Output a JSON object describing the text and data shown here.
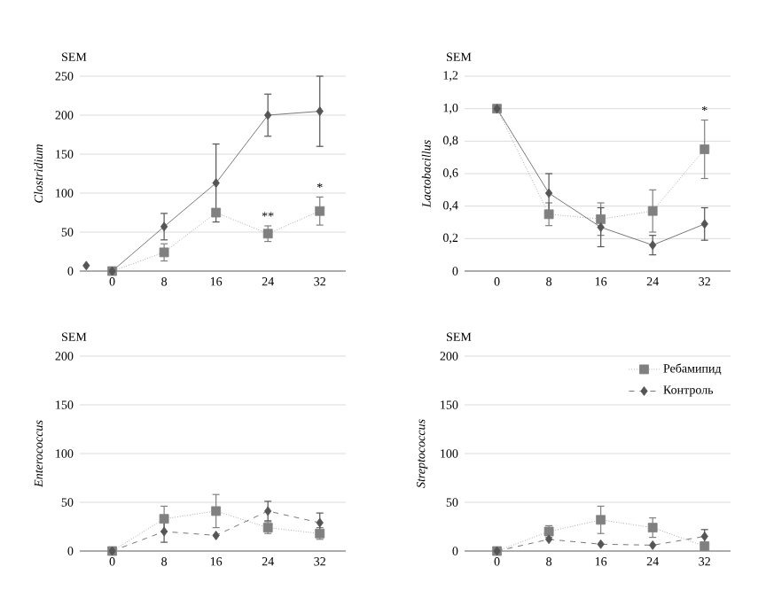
{
  "chart_data": [
    {
      "type": "line",
      "ylabel": "Clostridium",
      "x": [
        0,
        8,
        16,
        24,
        32
      ],
      "xlim": [
        -5,
        36
      ],
      "xticks": [
        0,
        8,
        16,
        24,
        32
      ],
      "ylim": [
        0,
        250
      ],
      "yticks": [
        0,
        50,
        100,
        150,
        200,
        250
      ],
      "grid": "y",
      "annotations": [
        "SEM"
      ],
      "series": [
        {
          "color": "#808080",
          "marker": "square",
          "line_style": "dotted",
          "values": [
            0,
            24,
            75,
            48,
            77
          ],
          "errors": [
            null,
            11,
            null,
            10,
            18
          ],
          "value_labels": [
            null,
            null,
            null,
            "**",
            "*"
          ]
        },
        {
          "color": "#555555",
          "marker": "diamond",
          "line_style": "solid",
          "values": [
            0,
            57,
            113,
            200,
            205
          ],
          "errors": [
            null,
            17,
            50,
            27,
            45
          ]
        },
        {
          "type": "scatter",
          "color": "#555555",
          "marker": "diamond",
          "x": [
            -4
          ],
          "values": [
            7
          ]
        }
      ]
    },
    {
      "type": "line",
      "ylabel": "Lactobacillus",
      "x": [
        0,
        8,
        16,
        24,
        32
      ],
      "xlim": [
        -5,
        36
      ],
      "xticks": [
        0,
        8,
        16,
        24,
        32
      ],
      "ylim": [
        0,
        1.2
      ],
      "yticks": [
        0,
        {
          "value": 0.2,
          "label": "0,2"
        },
        {
          "value": 0.4,
          "label": "0,4"
        },
        {
          "value": 0.6,
          "label": "0,6"
        },
        {
          "value": 0.8,
          "label": "0,8"
        },
        {
          "value": 1.0,
          "label": "1,0"
        },
        {
          "value": 1.2,
          "label": "1,2"
        }
      ],
      "grid": "y",
      "annotations": [
        "SEM"
      ],
      "series": [
        {
          "color": "#808080",
          "marker": "square",
          "line_style": "dotted",
          "values": [
            1.0,
            0.35,
            0.32,
            0.37,
            0.75
          ],
          "errors": [
            null,
            0.07,
            0.1,
            0.13,
            0.18
          ],
          "value_labels": [
            null,
            null,
            null,
            null,
            "*"
          ]
        },
        {
          "color": "#555555",
          "marker": "diamond",
          "line_style": "solid",
          "values": [
            1.0,
            0.48,
            0.27,
            0.16,
            0.29
          ],
          "errors": [
            null,
            0.12,
            0.12,
            0.06,
            0.1
          ]
        }
      ]
    },
    {
      "type": "line",
      "ylabel": "Enterococcus",
      "x": [
        0,
        8,
        16,
        24,
        32
      ],
      "xlim": [
        -5,
        36
      ],
      "xticks": [
        0,
        8,
        16,
        24,
        32
      ],
      "ylim": [
        0,
        200
      ],
      "yticks": [
        0,
        50,
        100,
        150,
        200
      ],
      "grid": "y",
      "annotations": [
        "SEM"
      ],
      "series": [
        {
          "color": "#808080",
          "marker": "square",
          "line_style": "dotted",
          "values": [
            0,
            33,
            41,
            24,
            18
          ],
          "errors": [
            null,
            13,
            17,
            6,
            6
          ]
        },
        {
          "color": "#555555",
          "marker": "diamond",
          "line_style": "dashed",
          "values": [
            0,
            20,
            16,
            41,
            29
          ],
          "errors": [
            null,
            11,
            null,
            10,
            10
          ]
        }
      ]
    },
    {
      "type": "line",
      "ylabel": "Streptococcus",
      "x": [
        0,
        8,
        16,
        24,
        32
      ],
      "xlim": [
        -5,
        36
      ],
      "xticks": [
        0,
        8,
        16,
        24,
        32
      ],
      "ylim": [
        0,
        200
      ],
      "yticks": [
        0,
        50,
        100,
        150,
        200
      ],
      "grid": "y",
      "legend": "top right",
      "annotations": [
        "SEM"
      ],
      "series": [
        {
          "name": "Ребамипид",
          "color": "#808080",
          "marker": "square",
          "line_style": "dotted",
          "values": [
            0,
            20,
            32,
            24,
            5
          ],
          "errors": [
            null,
            6,
            14,
            10,
            null
          ]
        },
        {
          "name": "Контроль",
          "color": "#555555",
          "marker": "diamond",
          "line_style": "dashed",
          "values": [
            0,
            12,
            7,
            6,
            15
          ],
          "errors": [
            null,
            null,
            null,
            null,
            7
          ]
        }
      ]
    }
  ]
}
